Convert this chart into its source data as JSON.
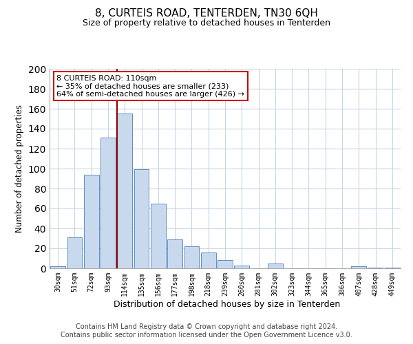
{
  "title": "8, CURTEIS ROAD, TENTERDEN, TN30 6QH",
  "subtitle": "Size of property relative to detached houses in Tenterden",
  "bar_labels": [
    "30sqm",
    "51sqm",
    "72sqm",
    "93sqm",
    "114sqm",
    "135sqm",
    "156sqm",
    "177sqm",
    "198sqm",
    "218sqm",
    "239sqm",
    "260sqm",
    "281sqm",
    "302sqm",
    "323sqm",
    "344sqm",
    "365sqm",
    "386sqm",
    "407sqm",
    "428sqm",
    "449sqm"
  ],
  "bar_values": [
    2,
    31,
    94,
    131,
    155,
    99,
    65,
    29,
    22,
    16,
    8,
    3,
    0,
    5,
    0,
    0,
    0,
    0,
    2,
    1,
    1
  ],
  "bar_color": "#c9d9ed",
  "bar_edge_color": "#5b8ec4",
  "highlight_bar_index": 4,
  "highlight_line_color": "#8b0000",
  "ylabel": "Number of detached properties",
  "xlabel": "Distribution of detached houses by size in Tenterden",
  "ylim": [
    0,
    200
  ],
  "yticks": [
    0,
    20,
    40,
    60,
    80,
    100,
    120,
    140,
    160,
    180,
    200
  ],
  "annotation_title": "8 CURTEIS ROAD: 110sqm",
  "annotation_line1": "← 35% of detached houses are smaller (233)",
  "annotation_line2": "64% of semi-detached houses are larger (426) →",
  "annotation_box_color": "#ffffff",
  "annotation_box_edge": "#cc0000",
  "footer_line1": "Contains HM Land Registry data © Crown copyright and database right 2024.",
  "footer_line2": "Contains public sector information licensed under the Open Government Licence v3.0.",
  "bg_color": "#ffffff",
  "grid_color": "#c8d4e8"
}
